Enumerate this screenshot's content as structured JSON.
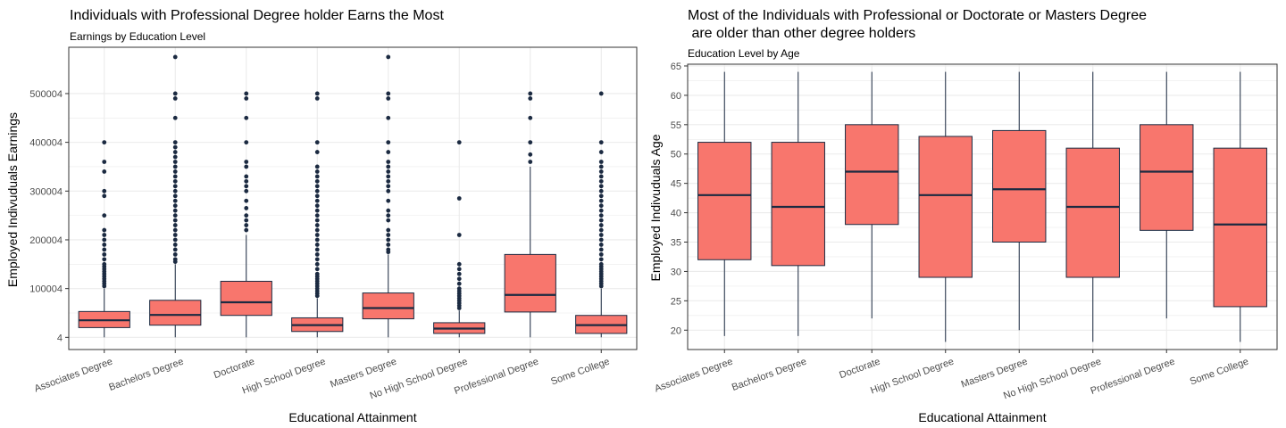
{
  "chart_data": [
    {
      "type": "box",
      "title": "Individuals with Professional Degree holder Earns the Most",
      "subtitle": "Earnings by Education Level",
      "xlabel": "Educational Attainment",
      "ylabel": "Employed Indivuduals Earnings",
      "ylim": [
        -25000,
        595000
      ],
      "yticks": [
        4,
        100004,
        200004,
        300004,
        400004,
        500004
      ],
      "ytick_labels": [
        "4",
        "100004",
        "200004",
        "300004",
        "400004",
        "500004"
      ],
      "grid": true,
      "colors": {
        "box_fill": "#F8766D",
        "line": "#1B2A41",
        "outlier": "#1B2A41",
        "grid": "#EBEBEB",
        "border": "#333333"
      },
      "categories": [
        "Associates Degree",
        "Bachelors Degree",
        "Doctorate",
        "High School Degree",
        "Masters Degree",
        "No High School Degree",
        "Professional Degree",
        "Some College"
      ],
      "boxes": [
        {
          "min": 4,
          "q1": 20000,
          "median": 35000,
          "q3": 53000,
          "max": 100000,
          "outliers": [
            105000,
            110000,
            115000,
            120000,
            125000,
            130000,
            135000,
            140000,
            145000,
            150000,
            160000,
            170000,
            180000,
            190000,
            200000,
            210000,
            220000,
            250000,
            290000,
            300000,
            340000,
            360000,
            400004
          ]
        },
        {
          "min": 4,
          "q1": 25000,
          "median": 46000,
          "q3": 76000,
          "max": 150000,
          "outliers": [
            155000,
            160000,
            170000,
            180000,
            190000,
            200000,
            210000,
            220000,
            230000,
            240000,
            250000,
            260000,
            270000,
            280000,
            290000,
            300000,
            310000,
            320000,
            330000,
            340000,
            350000,
            360000,
            370000,
            380000,
            390000,
            400004,
            450000,
            490000,
            500004,
            575000
          ]
        },
        {
          "min": 4,
          "q1": 45000,
          "median": 72000,
          "q3": 115000,
          "max": 210000,
          "outliers": [
            220000,
            230000,
            240000,
            250000,
            265000,
            280000,
            300000,
            310000,
            320000,
            330000,
            350000,
            360000,
            400004,
            450000,
            490000,
            500004
          ]
        },
        {
          "min": 4,
          "q1": 12000,
          "median": 25000,
          "q3": 40000,
          "max": 80000,
          "outliers": [
            85000,
            90000,
            95000,
            100000,
            105000,
            110000,
            115000,
            120000,
            125000,
            130000,
            140000,
            150000,
            160000,
            170000,
            180000,
            190000,
            200000,
            210000,
            220000,
            230000,
            240000,
            250000,
            260000,
            270000,
            280000,
            290000,
            300000,
            310000,
            320000,
            330000,
            340000,
            350000,
            380000,
            400004,
            490000,
            500004
          ]
        },
        {
          "min": 4,
          "q1": 38000,
          "median": 60000,
          "q3": 91000,
          "max": 170000,
          "outliers": [
            175000,
            180000,
            190000,
            200000,
            210000,
            220000,
            240000,
            250000,
            260000,
            280000,
            300000,
            310000,
            320000,
            330000,
            340000,
            350000,
            360000,
            380000,
            400004,
            450000,
            490000,
            500004,
            575000
          ]
        },
        {
          "min": 4,
          "q1": 8000,
          "median": 18000,
          "q3": 30000,
          "max": 55000,
          "outliers": [
            60000,
            65000,
            70000,
            75000,
            80000,
            85000,
            90000,
            95000,
            100000,
            110000,
            120000,
            130000,
            140000,
            150000,
            210000,
            285000,
            400004
          ]
        },
        {
          "min": 4,
          "q1": 52000,
          "median": 87000,
          "q3": 170000,
          "max": 350000,
          "outliers": [
            360000,
            375000,
            400004,
            450000,
            490000,
            500004
          ]
        },
        {
          "min": 4,
          "q1": 8000,
          "median": 25000,
          "q3": 45000,
          "max": 100000,
          "outliers": [
            105000,
            110000,
            115000,
            120000,
            125000,
            130000,
            135000,
            140000,
            145000,
            150000,
            160000,
            170000,
            180000,
            190000,
            200000,
            210000,
            220000,
            230000,
            240000,
            250000,
            260000,
            270000,
            280000,
            290000,
            300000,
            310000,
            320000,
            330000,
            340000,
            350000,
            360000,
            380000,
            400004,
            500004
          ]
        }
      ]
    },
    {
      "type": "box",
      "title": "Most of the Individuals with Professional or Doctorate or Masters Degree\n are older than other degree holders",
      "subtitle": "Education Level by Age",
      "xlabel": "Educational Attainment",
      "ylabel": "Employed Indivuduals Age",
      "ylim": [
        16.7,
        65.3
      ],
      "yticks": [
        20,
        25,
        30,
        35,
        40,
        45,
        50,
        55,
        60,
        65
      ],
      "ytick_labels": [
        "20",
        "25",
        "30",
        "35",
        "40",
        "45",
        "50",
        "55",
        "60",
        "65"
      ],
      "grid": true,
      "colors": {
        "box_fill": "#F8766D",
        "line": "#1B2A41",
        "outlier": "#1B2A41",
        "grid": "#EBEBEB",
        "border": "#333333"
      },
      "categories": [
        "Associates Degree",
        "Bachelors Degree",
        "Doctorate",
        "High School Degree",
        "Masters Degree",
        "No High School Degree",
        "Professional Degree",
        "Some College"
      ],
      "boxes": [
        {
          "min": 19,
          "q1": 32,
          "median": 43,
          "q3": 52,
          "max": 64,
          "outliers": []
        },
        {
          "min": 19,
          "q1": 31,
          "median": 41,
          "q3": 52,
          "max": 64,
          "outliers": []
        },
        {
          "min": 22,
          "q1": 38,
          "median": 47,
          "q3": 55,
          "max": 64,
          "outliers": []
        },
        {
          "min": 18,
          "q1": 29,
          "median": 43,
          "q3": 53,
          "max": 64,
          "outliers": []
        },
        {
          "min": 20,
          "q1": 35,
          "median": 44,
          "q3": 54,
          "max": 64,
          "outliers": []
        },
        {
          "min": 18,
          "q1": 29,
          "median": 41,
          "q3": 51,
          "max": 64,
          "outliers": []
        },
        {
          "min": 22,
          "q1": 37,
          "median": 47,
          "q3": 55,
          "max": 64,
          "outliers": []
        },
        {
          "min": 18,
          "q1": 24,
          "median": 38,
          "q3": 51,
          "max": 64,
          "outliers": []
        }
      ]
    }
  ]
}
